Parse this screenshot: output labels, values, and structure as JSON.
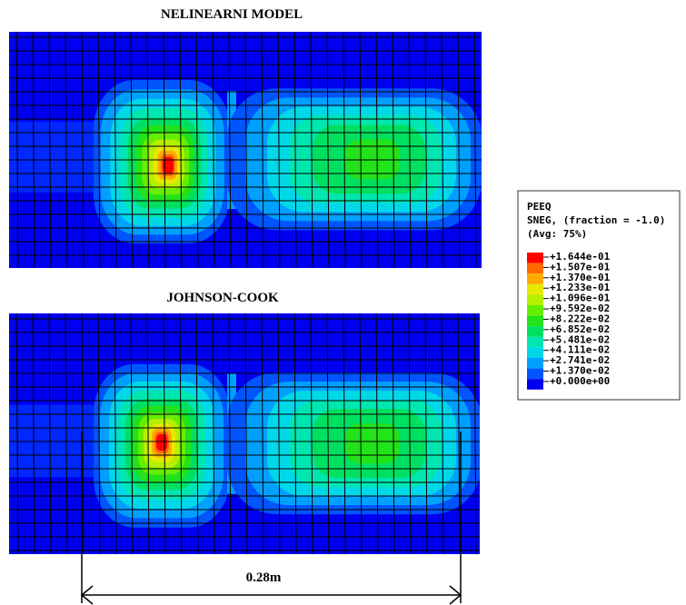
{
  "figure": {
    "top_title": "NELINEARNI MODEL",
    "bottom_title": "JOHNSON-COOK",
    "dimension_label": "0.28m"
  },
  "legend": {
    "title_lines": [
      "PEEQ",
      "SNEG, (fraction = -1.0)",
      "(Avg: 75%)"
    ],
    "labels": [
      "+1.644e-01",
      "+1.507e-01",
      "+1.370e-01",
      "+1.233e-01",
      "+1.096e-01",
      "+9.592e-02",
      "+8.222e-02",
      "+6.852e-02",
      "+5.481e-02",
      "+4.111e-02",
      "+2.741e-02",
      "+1.370e-02",
      "+0.000e+00"
    ],
    "colors": [
      "#ff0000",
      "#ff6a00",
      "#ffaa00",
      "#e8e800",
      "#b4f000",
      "#66ee00",
      "#22e21a",
      "#00e060",
      "#00e6b0",
      "#00d8e8",
      "#00a0ff",
      "#0055ff",
      "#0000f0"
    ]
  }
}
